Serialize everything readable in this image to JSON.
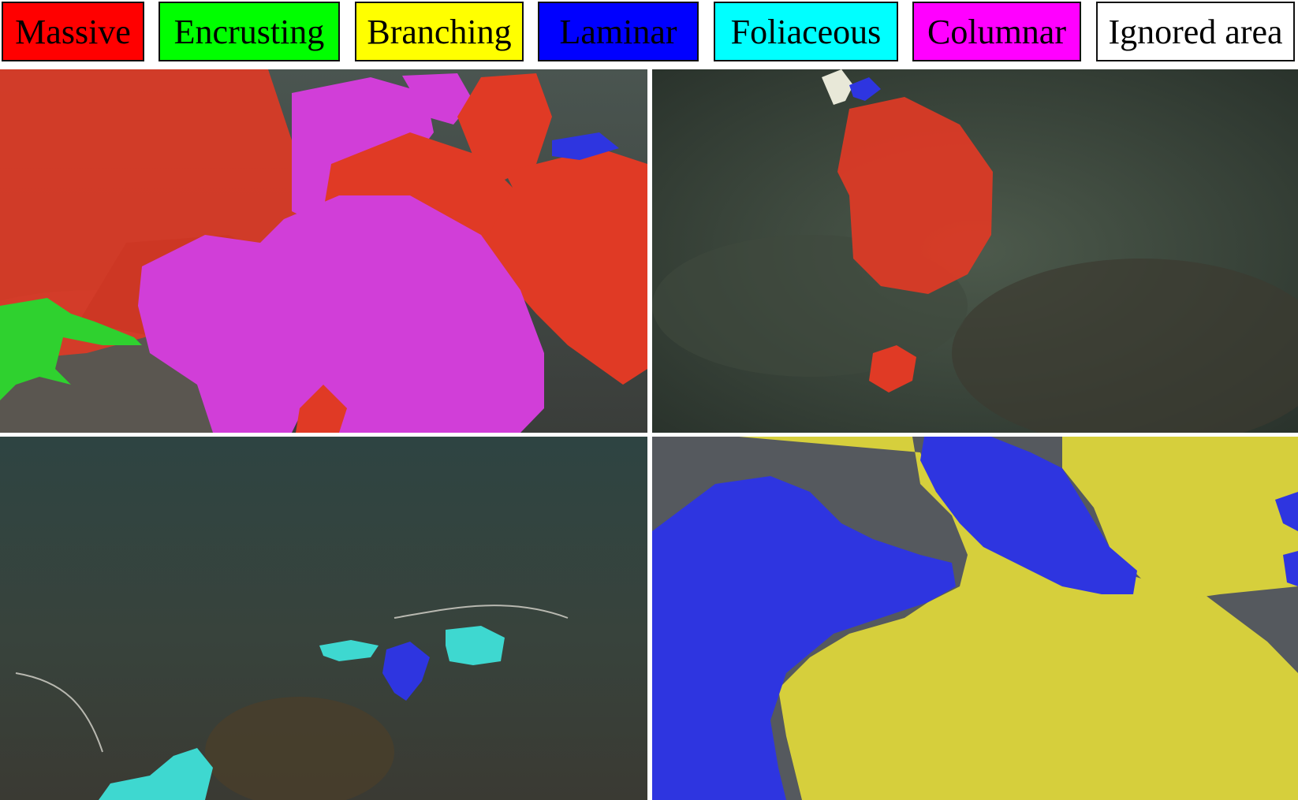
{
  "legend": {
    "items": [
      {
        "label": "Massive",
        "color": "#ff0000"
      },
      {
        "label": "Encrusting",
        "color": "#00ff00"
      },
      {
        "label": "Branching",
        "color": "#ffff00"
      },
      {
        "label": "Laminar",
        "color": "#0000ff"
      },
      {
        "label": "Foliaceous",
        "color": "#00ffff"
      },
      {
        "label": "Columnar",
        "color": "#ff00ff"
      },
      {
        "label": "Ignored area",
        "color": "#ffffff"
      }
    ]
  },
  "panels": [
    {
      "scene": "underwater-reef-massive-columnar-encrusting"
    },
    {
      "scene": "underwater-reef-massive"
    },
    {
      "scene": "underwater-murky-foliaceous-laminar"
    },
    {
      "scene": "underwater-laminar-branching-closeup"
    }
  ]
}
